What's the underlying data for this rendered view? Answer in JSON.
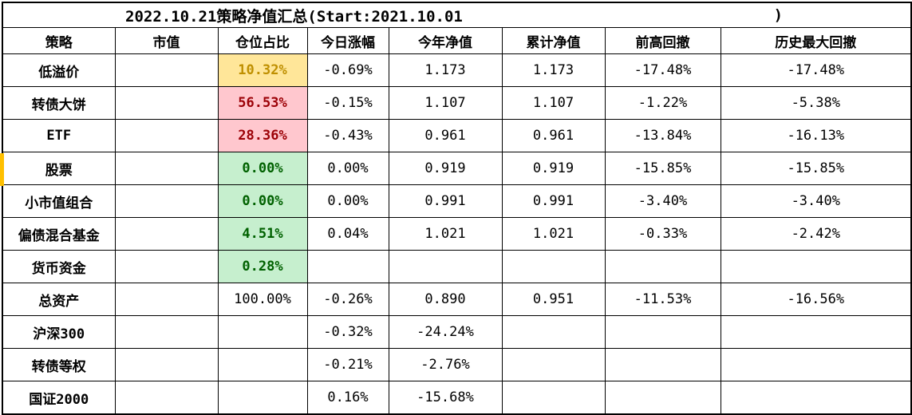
{
  "title": {
    "text": "2022.10.21策略净值汇总(Start:2021.10.01",
    "closing_paren": ")"
  },
  "table": {
    "headers": [
      "策略",
      "市值",
      "仓位占比",
      "今日涨幅",
      "今年净值",
      "累计净值",
      "前高回撤",
      "历史最大回撤"
    ],
    "rows": [
      {
        "strategy": "低溢价",
        "market_value": "",
        "position_pct": "10.32%",
        "position_style": "neutral",
        "today_change": "-0.69%",
        "ytd_nav": "1.173",
        "cumulative_nav": "1.173",
        "drawdown_from_high": "-17.48%",
        "max_drawdown_history": "-17.48%"
      },
      {
        "strategy": "转债大饼",
        "market_value": "",
        "position_pct": "56.53%",
        "position_style": "bad",
        "today_change": "-0.15%",
        "ytd_nav": "1.107",
        "cumulative_nav": "1.107",
        "drawdown_from_high": "-1.22%",
        "max_drawdown_history": "-5.38%"
      },
      {
        "strategy": "ETF",
        "market_value": "",
        "position_pct": "28.36%",
        "position_style": "bad",
        "today_change": "-0.43%",
        "ytd_nav": "0.961",
        "cumulative_nav": "0.961",
        "drawdown_from_high": "-13.84%",
        "max_drawdown_history": "-16.13%"
      },
      {
        "strategy": "股票",
        "market_value": "",
        "position_pct": "0.00%",
        "position_style": "good",
        "today_change": "0.00%",
        "ytd_nav": "0.919",
        "cumulative_nav": "0.919",
        "drawdown_from_high": "-15.85%",
        "max_drawdown_history": "-15.85%"
      },
      {
        "strategy": "小市值组合",
        "market_value": "",
        "position_pct": "0.00%",
        "position_style": "good",
        "today_change": "0.00%",
        "ytd_nav": "0.991",
        "cumulative_nav": "0.991",
        "drawdown_from_high": "-3.40%",
        "max_drawdown_history": "-3.40%"
      },
      {
        "strategy": "偏债混合基金",
        "market_value": "",
        "position_pct": "4.51%",
        "position_style": "good",
        "today_change": "0.04%",
        "ytd_nav": "1.021",
        "cumulative_nav": "1.021",
        "drawdown_from_high": "-0.33%",
        "max_drawdown_history": "-2.42%"
      },
      {
        "strategy": "货币资金",
        "market_value": "",
        "position_pct": "0.28%",
        "position_style": "good",
        "today_change": "",
        "ytd_nav": "",
        "cumulative_nav": "",
        "drawdown_from_high": "",
        "max_drawdown_history": ""
      },
      {
        "strategy": "总资产",
        "market_value": "",
        "position_pct": "100.00%",
        "position_style": "plain",
        "today_change": "-0.26%",
        "ytd_nav": "0.890",
        "cumulative_nav": "0.951",
        "drawdown_from_high": "-11.53%",
        "max_drawdown_history": "-16.56%"
      },
      {
        "strategy": "沪深300",
        "market_value": "",
        "position_pct": "",
        "position_style": "plain",
        "today_change": "-0.32%",
        "ytd_nav": "-24.24%",
        "cumulative_nav": "",
        "drawdown_from_high": "",
        "max_drawdown_history": ""
      },
      {
        "strategy": "转债等权",
        "market_value": "",
        "position_pct": "",
        "position_style": "plain",
        "today_change": "-0.21%",
        "ytd_nav": "-2.76%",
        "cumulative_nav": "",
        "drawdown_from_high": "",
        "max_drawdown_history": ""
      },
      {
        "strategy": "国证2000",
        "market_value": "",
        "position_pct": "",
        "position_style": "plain",
        "today_change": "0.16%",
        "ytd_nav": "-15.68%",
        "cumulative_nav": "",
        "drawdown_from_high": "",
        "max_drawdown_history": ""
      }
    ]
  },
  "colors": {
    "neutral_bg": "#FFE699",
    "neutral_text": "#BF8F00",
    "bad_bg": "#FFC7CE",
    "bad_text": "#9C0006",
    "good_bg": "#C6EFCE",
    "good_text": "#006100",
    "row_marker": "#FFC000",
    "border": "#000000"
  }
}
